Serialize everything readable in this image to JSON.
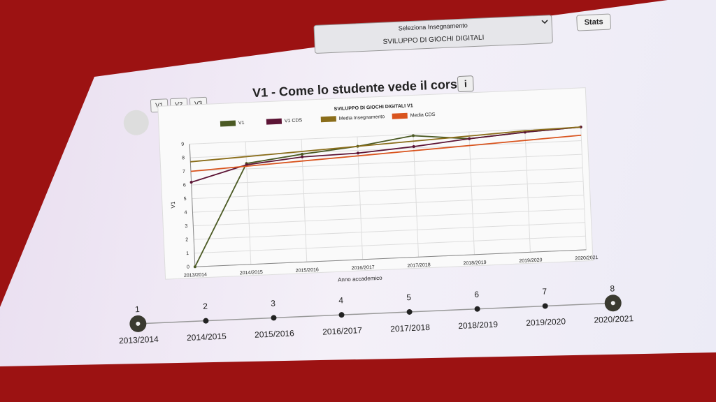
{
  "header": {
    "select_label": "Seleziona Insegnamento",
    "select_value": "SVILUPPO DI GIOCHI DIGITALI",
    "stats_button": "Stats"
  },
  "tabs": [
    "V1",
    "V2",
    "V3"
  ],
  "heading": "V1 - Come lo studente vede il corso",
  "info_button": "i",
  "chart_data": {
    "type": "line",
    "title": "SVILUPPO DI GIOCHI DIGITALI V1",
    "x_label": "Anno accademico",
    "y_label": "V1",
    "categories": [
      "2013/2014",
      "2014/2015",
      "2015/2016",
      "2016/2017",
      "2017/2018",
      "2018/2019",
      "2019/2020",
      "2020/2021"
    ],
    "series": [
      {
        "name": "V1",
        "color": "#4b5a24",
        "values": [
          0,
          7.4,
          7.9,
          8.3,
          8.9,
          8.5,
          8.8,
          9.0
        ]
      },
      {
        "name": "V1 CDS",
        "color": "#5c1435",
        "values": [
          6.2,
          7.3,
          7.7,
          7.8,
          8.1,
          8.5,
          8.8,
          9.0
        ]
      },
      {
        "name": "Media Insegnamento",
        "color": "#8a6d1a",
        "values": [
          7.7,
          7.9,
          8.1,
          8.3,
          8.5,
          8.7,
          8.9,
          9.0
        ]
      },
      {
        "name": "Media CDS",
        "color": "#d9541e",
        "values": [
          7.0,
          7.2,
          7.4,
          7.6,
          7.8,
          8.0,
          8.2,
          8.4
        ]
      }
    ],
    "ylim": [
      0,
      9
    ],
    "yticks": [
      0,
      1,
      2,
      3,
      4,
      5,
      6,
      7,
      8,
      9
    ],
    "grid": true,
    "legend": "top"
  },
  "timeline": [
    {
      "number": "1",
      "label": "2013/2014"
    },
    {
      "number": "2",
      "label": "2014/2015"
    },
    {
      "number": "3",
      "label": "2015/2016"
    },
    {
      "number": "4",
      "label": "2016/2017"
    },
    {
      "number": "5",
      "label": "2017/2018"
    },
    {
      "number": "6",
      "label": "2018/2019"
    },
    {
      "number": "7",
      "label": "2019/2020"
    },
    {
      "number": "8",
      "label": "2020/2021"
    }
  ]
}
